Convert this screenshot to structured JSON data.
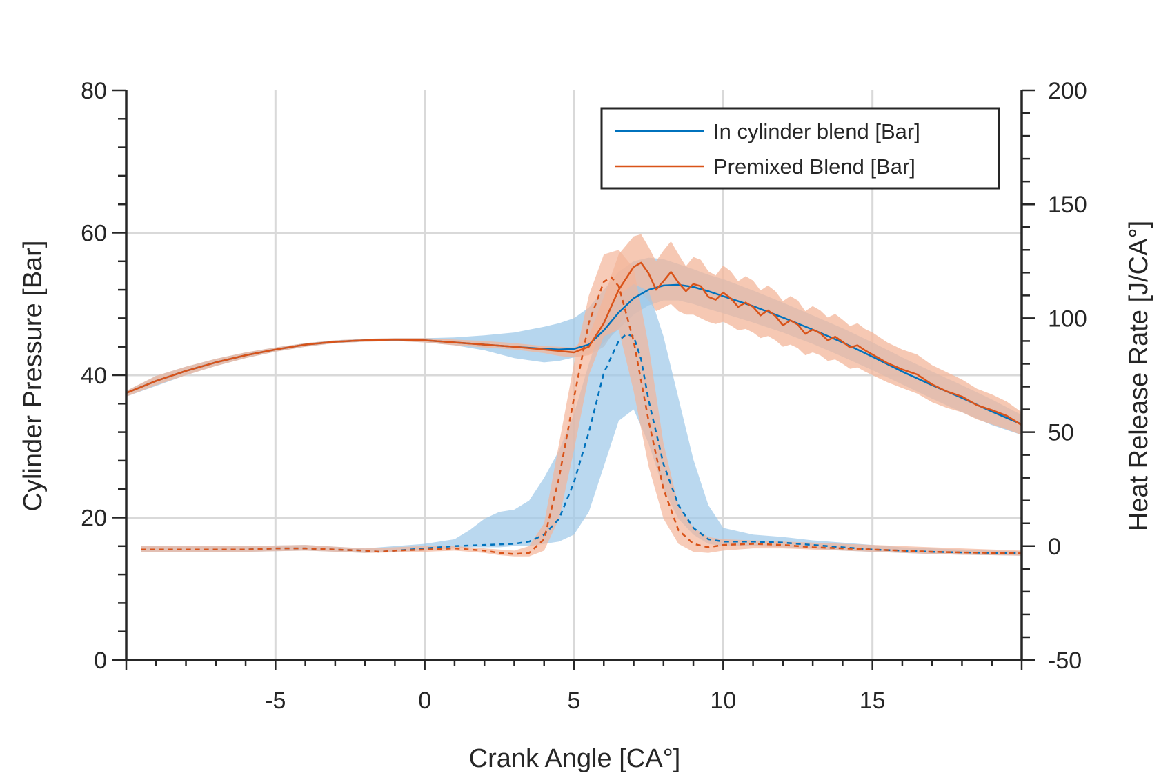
{
  "chart_data": {
    "type": "line",
    "title": "",
    "xlabel": "Crank Angle [CA°]",
    "ylabel_left": "Cylinder Pressure [Bar]",
    "ylabel_right": "Heat Release Rate [J/CA°]",
    "xlim": [
      -10,
      20
    ],
    "ylim_left": [
      0,
      80
    ],
    "ylim_right": [
      -50,
      200
    ],
    "x_ticks": [
      -5,
      0,
      5,
      10,
      15
    ],
    "x_tick_labels": [
      "-5",
      "0",
      "5",
      "10",
      "15"
    ],
    "y_left_ticks": [
      0,
      20,
      40,
      60,
      80
    ],
    "y_left_tick_labels": [
      "0",
      "20",
      "40",
      "60",
      "80"
    ],
    "y_right_ticks": [
      -50,
      0,
      50,
      100,
      150,
      200
    ],
    "y_right_tick_labels": [
      "-50",
      "0",
      "50",
      "100",
      "150",
      "200"
    ],
    "grid": true,
    "legend_position": "top-right",
    "colors": {
      "in_cylinder": "#0072BD",
      "premixed": "#D95319",
      "in_cylinder_band": "#9DC8E8",
      "premixed_band": "#F3B59A",
      "axis": "#262626",
      "grid": "#d9d9d9"
    },
    "series": [
      {
        "name": "In cylinder blend [Bar]",
        "axis": "left",
        "style": "solid",
        "x": [
          -10,
          -9,
          -8,
          -7,
          -6,
          -5,
          -4,
          -3,
          -2,
          -1,
          0,
          1,
          2,
          3,
          4,
          4.5,
          5,
          5.5,
          6,
          6.5,
          7,
          7.5,
          8,
          8.5,
          9,
          9.5,
          10,
          11,
          12,
          13,
          14,
          15,
          16,
          17,
          18,
          19,
          20
        ],
        "y": [
          37.5,
          39.2,
          40.6,
          41.8,
          42.8,
          43.6,
          44.3,
          44.7,
          44.9,
          45.0,
          44.9,
          44.6,
          44.3,
          44.0,
          43.7,
          43.6,
          43.7,
          44.3,
          46.3,
          48.8,
          50.8,
          52.0,
          52.6,
          52.7,
          52.4,
          51.8,
          51.1,
          49.7,
          48.1,
          46.4,
          44.6,
          42.6,
          40.5,
          38.6,
          36.8,
          34.9,
          33.1
        ],
        "band_lower": [
          37.0,
          38.5,
          40.0,
          41.3,
          42.4,
          43.3,
          44.0,
          44.5,
          44.7,
          44.8,
          44.6,
          44.2,
          43.5,
          42.4,
          41.8,
          42.0,
          42.5,
          43.0,
          44.5,
          46.5,
          48.5,
          49.8,
          50.5,
          50.5,
          50.0,
          49.3,
          48.7,
          47.4,
          46.0,
          44.4,
          42.6,
          40.7,
          38.7,
          36.7,
          34.8,
          33.0,
          31.6
        ],
        "band_upper": [
          37.8,
          39.9,
          41.2,
          42.3,
          43.2,
          43.9,
          44.5,
          44.9,
          45.1,
          45.2,
          45.2,
          45.3,
          45.6,
          46.0,
          46.8,
          47.3,
          48.0,
          49.5,
          52.0,
          54.5,
          56.0,
          56.5,
          56.3,
          55.6,
          54.9,
          54.1,
          53.5,
          51.9,
          50.2,
          48.4,
          46.6,
          44.6,
          42.5,
          40.5,
          38.6,
          36.6,
          34.4
        ]
      },
      {
        "name": "Premixed Blend [Bar]",
        "axis": "left",
        "style": "solid",
        "x": [
          -10,
          -9,
          -8,
          -7,
          -6,
          -5,
          -4,
          -3,
          -2,
          -1,
          0,
          1,
          2,
          3,
          4,
          4.5,
          5,
          5.5,
          6,
          6.5,
          7,
          7.25,
          7.5,
          7.75,
          8,
          8.25,
          8.5,
          8.75,
          9,
          9.25,
          9.5,
          9.75,
          10,
          10.25,
          10.5,
          10.75,
          11,
          11.25,
          11.5,
          11.75,
          12,
          12.25,
          12.5,
          12.75,
          13,
          13.25,
          13.5,
          13.75,
          14,
          14.25,
          14.5,
          14.75,
          15,
          15.5,
          16,
          16.5,
          17,
          17.5,
          18,
          18.5,
          19,
          19.5,
          20
        ],
        "y": [
          37.5,
          39.2,
          40.6,
          41.8,
          42.8,
          43.6,
          44.3,
          44.7,
          44.9,
          45.0,
          44.9,
          44.6,
          44.3,
          44.0,
          43.6,
          43.4,
          43.2,
          44.0,
          47.3,
          52.0,
          55.2,
          55.8,
          54.3,
          52.0,
          53.2,
          54.5,
          53.0,
          51.8,
          52.8,
          52.5,
          51.0,
          50.6,
          51.6,
          50.8,
          49.6,
          50.2,
          49.6,
          48.4,
          49.1,
          48.3,
          47.0,
          47.7,
          47.1,
          45.8,
          46.4,
          45.9,
          44.9,
          45.4,
          44.7,
          43.9,
          44.2,
          43.5,
          42.9,
          41.7,
          40.8,
          40.1,
          38.7,
          37.7,
          37.0,
          35.8,
          35.1,
          34.3,
          33.0
        ],
        "band_lower": [
          37.0,
          38.6,
          40.0,
          41.3,
          42.4,
          43.3,
          44.0,
          44.5,
          44.7,
          44.8,
          44.6,
          44.2,
          43.9,
          43.6,
          43.1,
          42.7,
          42.5,
          42.8,
          44.0,
          47.0,
          50.5,
          51.5,
          50.5,
          49.0,
          49.5,
          50.0,
          49.0,
          48.5,
          48.5,
          48.0,
          47.5,
          47.2,
          47.5,
          47.0,
          46.3,
          46.5,
          46.0,
          45.2,
          45.5,
          44.9,
          44.0,
          44.3,
          43.8,
          42.8,
          43.2,
          42.8,
          42.0,
          42.2,
          41.6,
          40.9,
          41.1,
          40.5,
          40.0,
          39.0,
          38.2,
          37.4,
          36.2,
          35.4,
          34.8,
          33.8,
          33.1,
          32.4,
          31.6
        ],
        "band_upper": [
          37.8,
          39.9,
          41.2,
          42.3,
          43.2,
          43.9,
          44.5,
          44.9,
          45.1,
          45.2,
          45.2,
          45.0,
          44.8,
          44.5,
          44.1,
          44.0,
          43.9,
          45.5,
          51.0,
          57.0,
          59.5,
          59.8,
          58.0,
          56.0,
          57.5,
          58.8,
          57.0,
          55.3,
          56.6,
          56.2,
          54.6,
          54.0,
          55.4,
          54.6,
          53.2,
          53.9,
          53.3,
          51.9,
          52.6,
          51.8,
          50.4,
          51.1,
          50.5,
          49.0,
          49.7,
          49.1,
          48.1,
          48.6,
          47.8,
          46.9,
          47.3,
          46.5,
          46.0,
          44.6,
          43.6,
          42.9,
          41.4,
          40.4,
          39.4,
          38.1,
          37.3,
          36.3,
          34.8
        ]
      },
      {
        "name": "",
        "axis": "right",
        "style": "dashed",
        "x": [
          -9.5,
          -8,
          -7,
          -6,
          -5,
          -4,
          -3,
          -2,
          -1.5,
          -1,
          0,
          1,
          2,
          3,
          3.5,
          4,
          4.5,
          5,
          5.5,
          6,
          6.5,
          6.75,
          7,
          7.25,
          7.5,
          8,
          8.5,
          9,
          9.5,
          10,
          11,
          12,
          13,
          14,
          15,
          16,
          17,
          18,
          19,
          20
        ],
        "y": [
          -1.5,
          -1.5,
          -1.5,
          -1.5,
          -1,
          -1,
          -1.5,
          -2,
          -2.5,
          -2,
          -1,
          0,
          0.5,
          1,
          2,
          5,
          12,
          28,
          50,
          76,
          90,
          93,
          92,
          82,
          64,
          36,
          18,
          8,
          3,
          2,
          2,
          1.5,
          0.5,
          -0.5,
          -1.5,
          -2,
          -2.5,
          -2.8,
          -3,
          -3.2
        ]
      },
      {
        "name": "",
        "axis": "right",
        "style": "dashed",
        "x": [
          -9.5,
          -8,
          -7,
          -6,
          -5,
          -4,
          -3,
          -2,
          -1.5,
          -1,
          0,
          1,
          2,
          2.5,
          3,
          3.5,
          4,
          4.5,
          5,
          5.5,
          6,
          6.25,
          6.5,
          7,
          7.5,
          8,
          8.5,
          9,
          9.5,
          10,
          11,
          12,
          13,
          14,
          15,
          16,
          17,
          18,
          19,
          20
        ],
        "y": [
          -1.5,
          -1.5,
          -1.5,
          -1.5,
          -1,
          -1,
          -1.5,
          -2,
          -2.5,
          -2,
          -1.5,
          -1,
          -2,
          -3,
          -3.5,
          -3,
          3,
          30,
          65,
          98,
          116,
          118,
          114,
          90,
          55,
          25,
          7,
          1,
          -0.5,
          0.5,
          1,
          0.5,
          -0.5,
          -1,
          -1.5,
          -2,
          -2.5,
          -2.8,
          -3,
          -3.2
        ]
      }
    ],
    "hrr_bands": [
      {
        "series_index": 2,
        "x": [
          -9.5,
          -8,
          -6,
          -4,
          -2,
          0,
          1,
          1.5,
          2,
          2.5,
          3,
          3.5,
          4,
          4.5,
          5,
          5.5,
          6,
          6.5,
          7,
          7.5,
          8,
          8.5,
          9,
          9.5,
          10,
          11,
          12,
          13,
          14,
          15,
          16,
          17,
          18,
          19,
          20
        ],
        "lower": [
          -2.5,
          -2.5,
          -2.5,
          -2,
          -3,
          -2,
          -1,
          -0.5,
          -0.5,
          -0.5,
          0,
          0,
          1,
          2,
          5,
          15,
          35,
          55,
          60,
          45,
          25,
          12,
          5,
          1,
          0,
          0,
          -0.5,
          -1,
          -2,
          -2.5,
          -3,
          -3.5,
          -3.8,
          -4,
          -4.2
        ],
        "upper": [
          0,
          0,
          0,
          0.5,
          -1,
          1,
          3,
          7,
          12,
          15,
          16,
          20,
          30,
          42,
          58,
          80,
          100,
          110,
          115,
          112,
          92,
          65,
          38,
          18,
          8,
          5,
          4,
          2.5,
          1.5,
          0.5,
          -0.5,
          -1,
          -1.5,
          -2,
          -2.2
        ]
      },
      {
        "series_index": 3,
        "x": [
          -9.5,
          -8,
          -6,
          -4,
          -2,
          0,
          1,
          2,
          2.5,
          3,
          3.5,
          4,
          4.5,
          5,
          5.5,
          6,
          6.5,
          7,
          7.5,
          8,
          8.5,
          9,
          9.5,
          10,
          11,
          12,
          13,
          14,
          15,
          16,
          17,
          18,
          19,
          20
        ],
        "lower": [
          -2.5,
          -2.5,
          -2.5,
          -2,
          -3,
          -2.5,
          -2,
          -3,
          -4,
          -4.5,
          -4.5,
          -2,
          12,
          42,
          75,
          92,
          95,
          68,
          35,
          12,
          1,
          -2.5,
          -3,
          -2,
          -1,
          -1,
          -1.5,
          -2,
          -2.5,
          -3,
          -3.5,
          -3.8,
          -4,
          -4.2
        ],
        "upper": [
          0,
          0,
          0,
          0.5,
          -1,
          0,
          0,
          -1,
          -1.5,
          -2,
          0,
          10,
          45,
          80,
          110,
          128,
          130,
          122,
          88,
          45,
          18,
          8,
          4,
          3,
          2.5,
          2,
          1.5,
          1,
          0.5,
          0,
          -0.5,
          -1,
          -1.5,
          -2
        ]
      }
    ],
    "legend": {
      "entries": [
        {
          "label": "In cylinder blend [Bar]",
          "color": "#0072BD"
        },
        {
          "label": "Premixed Blend [Bar]",
          "color": "#D95319"
        }
      ]
    }
  }
}
